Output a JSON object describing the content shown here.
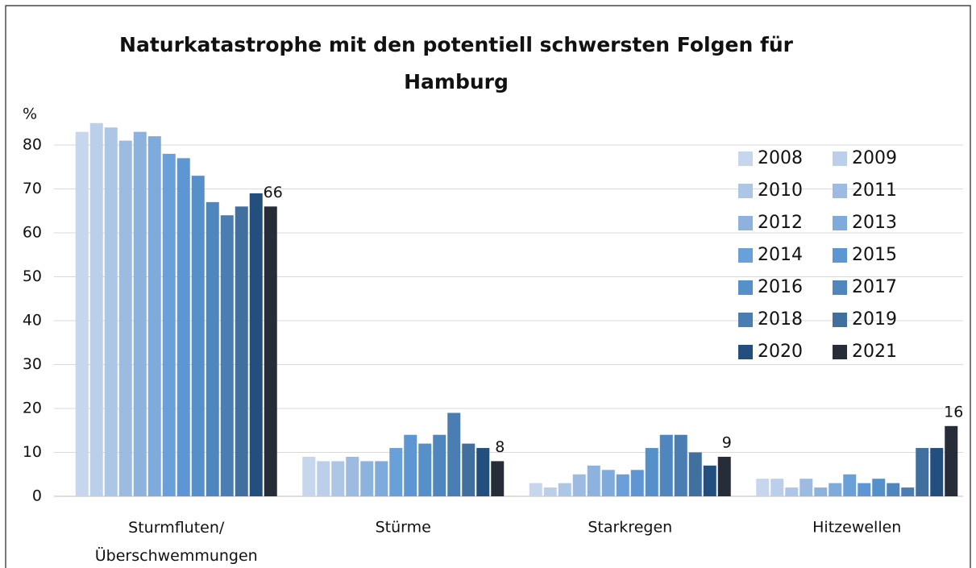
{
  "chart_data": {
    "type": "bar",
    "title": "Naturkatastrophe mit den potentiell schwersten Folgen für Hamburg",
    "y_axis_label": "%",
    "categories": [
      "Sturmfluten/\nÜberschwemmungen",
      "Stürme",
      "Starkregen",
      "Hitzewellen"
    ],
    "series": [
      {
        "name": "2008",
        "color": "#c6d6ec",
        "values": [
          83,
          9,
          3,
          4
        ]
      },
      {
        "name": "2009",
        "color": "#bccfea",
        "values": [
          85,
          8,
          2,
          4
        ]
      },
      {
        "name": "2010",
        "color": "#aec6e6",
        "values": [
          84,
          8,
          3,
          2
        ]
      },
      {
        "name": "2011",
        "color": "#9dbbe1",
        "values": [
          81,
          9,
          5,
          4
        ]
      },
      {
        "name": "2012",
        "color": "#8db2de",
        "values": [
          83,
          8,
          7,
          2
        ]
      },
      {
        "name": "2013",
        "color": "#7eaadc",
        "values": [
          82,
          8,
          6,
          3
        ]
      },
      {
        "name": "2014",
        "color": "#6aa0da",
        "values": [
          78,
          11,
          5,
          5
        ]
      },
      {
        "name": "2015",
        "color": "#5d96d2",
        "values": [
          77,
          14,
          6,
          3
        ]
      },
      {
        "name": "2016",
        "color": "#5690c8",
        "values": [
          73,
          12,
          11,
          4
        ]
      },
      {
        "name": "2017",
        "color": "#4f86bd",
        "values": [
          67,
          14,
          14,
          3
        ]
      },
      {
        "name": "2018",
        "color": "#4a7db1",
        "values": [
          64,
          19,
          14,
          2
        ]
      },
      {
        "name": "2019",
        "color": "#41709f",
        "values": [
          66,
          12,
          10,
          11
        ]
      },
      {
        "name": "2020",
        "color": "#234f7e",
        "values": [
          69,
          11,
          7,
          11
        ]
      },
      {
        "name": "2021",
        "color": "#262d38",
        "values": [
          66,
          8,
          9,
          16
        ],
        "show_value_labels": true
      }
    ],
    "ylim": [
      0,
      80
    ],
    "yticks": [
      0,
      10,
      20,
      30,
      40,
      50,
      60,
      70,
      80
    ],
    "grid": true,
    "legend": "upper right"
  }
}
